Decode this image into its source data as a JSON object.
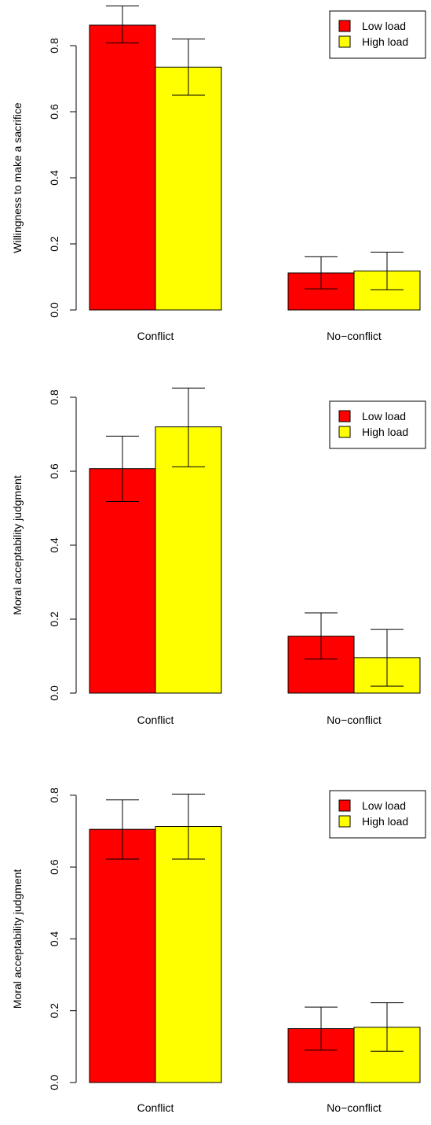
{
  "chart_data": [
    {
      "type": "bar",
      "categories": [
        "Conflict",
        "No−conflict"
      ],
      "series": [
        {
          "name": "Low load",
          "color": "#ff0000",
          "values": [
            0.862,
            0.112
          ],
          "error_low": [
            0.808,
            0.064
          ],
          "error_high": [
            0.92,
            0.161
          ]
        },
        {
          "name": "High load",
          "color": "#ffff00",
          "values": [
            0.735,
            0.118
          ],
          "error_low": [
            0.65,
            0.061
          ],
          "error_high": [
            0.82,
            0.175
          ]
        }
      ],
      "ylabel": "Willingness to make a sacrifice",
      "ylim": [
        0,
        0.9
      ],
      "yticks": [
        "0.0",
        "0.2",
        "0.4",
        "0.6",
        "0.8"
      ],
      "legend_position": "top-right"
    },
    {
      "type": "bar",
      "categories": [
        "Conflict",
        "No−conflict"
      ],
      "series": [
        {
          "name": "Low load",
          "color": "#ff0000",
          "values": [
            0.607,
            0.154
          ],
          "error_low": [
            0.518,
            0.092
          ],
          "error_high": [
            0.695,
            0.217
          ]
        },
        {
          "name": "High load",
          "color": "#ffff00",
          "values": [
            0.72,
            0.096
          ],
          "error_low": [
            0.612,
            0.019
          ],
          "error_high": [
            0.825,
            0.172
          ]
        }
      ],
      "ylabel": "Moral acceptability judgment",
      "ylim": [
        0,
        0.8
      ],
      "yticks": [
        "0.0",
        "0.2",
        "0.4",
        "0.6",
        "0.8"
      ],
      "legend_position": "top-right"
    },
    {
      "type": "bar",
      "categories": [
        "Conflict",
        "No−conflict"
      ],
      "series": [
        {
          "name": "Low load",
          "color": "#ff0000",
          "values": [
            0.705,
            0.15
          ],
          "error_low": [
            0.622,
            0.09
          ],
          "error_high": [
            0.787,
            0.21
          ]
        },
        {
          "name": "High load",
          "color": "#ffff00",
          "values": [
            0.713,
            0.154
          ],
          "error_low": [
            0.622,
            0.087
          ],
          "error_high": [
            0.803,
            0.222
          ]
        }
      ],
      "ylabel": "Moral acceptability judgment",
      "ylim": [
        0,
        0.8
      ],
      "yticks": [
        "0.0",
        "0.2",
        "0.4",
        "0.6",
        "0.8"
      ],
      "legend_position": "top-right"
    }
  ]
}
